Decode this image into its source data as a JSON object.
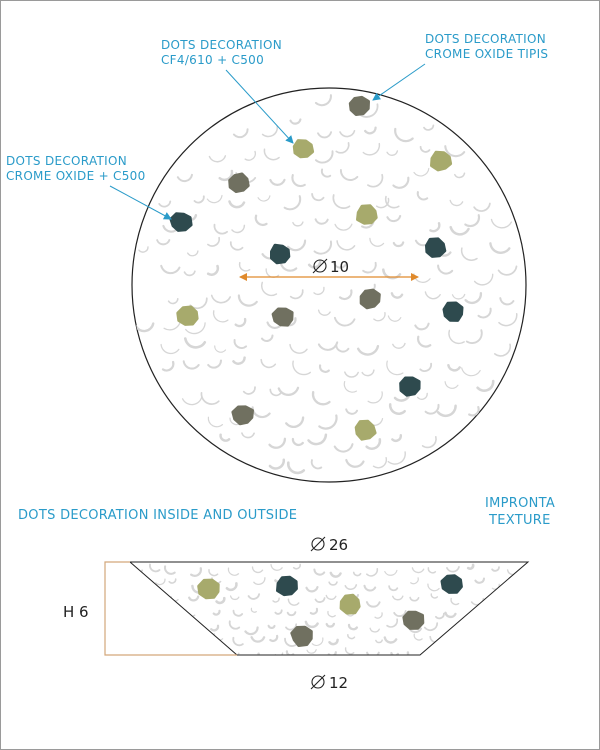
{
  "colors": {
    "label": "#2a9bc9",
    "leader": "#2a9bc9",
    "dimension_arrow": "#e08a2c",
    "height_bracket": "#d3a77a",
    "outline": "#222222",
    "dot_green": "#a7aa6c",
    "dot_grey": "#707060",
    "dot_teal": "#2e4a4e",
    "crater": "#d6d6d6"
  },
  "labels": {
    "dots_cf4": [
      "DOTS DECORATION",
      "CF4/610 + C500"
    ],
    "dots_tipis": [
      "DOTS DECORATION",
      "CROME OXIDE TIPIS"
    ],
    "dots_crome": [
      "DOTS DECORATION",
      "CROME OXIDE + C500"
    ],
    "inside_outside": "DOTS DECORATION INSIDE AND OUTSIDE",
    "impronta": [
      "IMPRONTA",
      "TEXTURE"
    ]
  },
  "dimensions": {
    "plan_diameter": "10",
    "top_diameter": "26",
    "bottom_diameter": "12",
    "height": "H 6"
  },
  "icons": {
    "diameter_symbol": "diameter-icon"
  }
}
